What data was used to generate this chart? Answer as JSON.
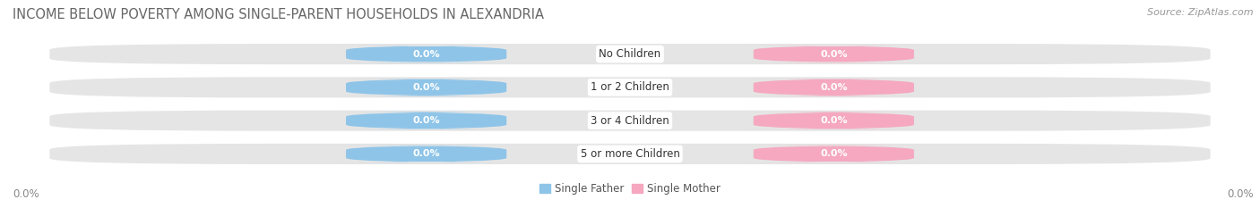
{
  "title": "INCOME BELOW POVERTY AMONG SINGLE-PARENT HOUSEHOLDS IN ALEXANDRIA",
  "source": "Source: ZipAtlas.com",
  "categories": [
    "No Children",
    "1 or 2 Children",
    "3 or 4 Children",
    "5 or more Children"
  ],
  "father_values": [
    0.0,
    0.0,
    0.0,
    0.0
  ],
  "mother_values": [
    0.0,
    0.0,
    0.0,
    0.0
  ],
  "father_color": "#8ec4e8",
  "mother_color": "#f5a8c0",
  "bar_bg_color": "#e5e5e5",
  "background_color": "#ffffff",
  "title_fontsize": 10.5,
  "source_fontsize": 8,
  "label_fontsize": 8,
  "category_fontsize": 8.5,
  "axis_label_left": "0.0%",
  "axis_label_right": "0.0%",
  "legend_father": "Single Father",
  "legend_mother": "Single Mother",
  "title_color": "#666666",
  "source_color": "#999999",
  "axis_label_color": "#888888",
  "value_text_color": "#ccddee",
  "category_text_color": "#333333"
}
